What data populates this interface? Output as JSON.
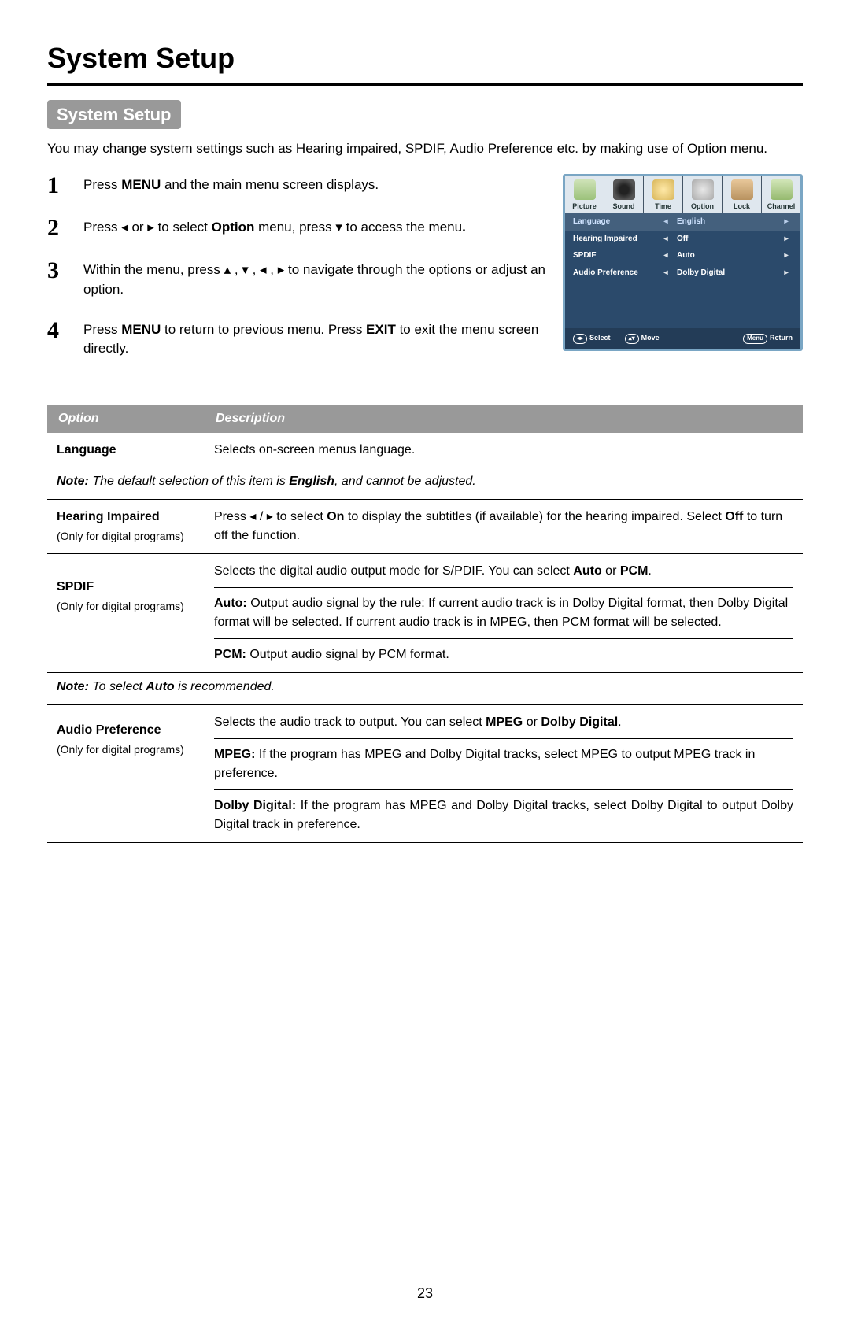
{
  "page": {
    "main_title": "System Setup",
    "section_badge": "System Setup",
    "intro": "You may change system settings such as Hearing impaired, SPDIF, Audio Preference etc. by making use of Option menu.",
    "page_number": "23"
  },
  "steps": [
    {
      "num": "1",
      "html": "Press <b>MENU</b> and the main menu screen displays."
    },
    {
      "num": "2",
      "html": "Press <span class='arrow'>◂</span> or <span class='arrow'>▸</span> to select <b>Option</b> menu,  press <span class='arrow'>▾</span> to access the menu<b>.</b>"
    },
    {
      "num": "3",
      "html": "Within the menu, press <span class='arrow'>▴</span> , <span class='arrow'>▾</span> , <span class='arrow'>◂</span> , <span class='arrow'>▸</span> to navigate through the options or adjust an option."
    },
    {
      "num": "4",
      "html": "Press <b>MENU</b> to return to previous menu. Press <b>EXIT</b> to exit the menu screen directly."
    }
  ],
  "osd": {
    "tabs": [
      "Picture",
      "Sound",
      "Time",
      "Option",
      "Lock",
      "Channel"
    ],
    "rows": [
      {
        "label": "Language",
        "value": "English",
        "highlight": true
      },
      {
        "label": "Hearing Impaired",
        "value": "Off",
        "highlight": false
      },
      {
        "label": "SPDIF",
        "value": "Auto",
        "highlight": false
      },
      {
        "label": "Audio Preference",
        "value": "Dolby Digital",
        "highlight": false
      }
    ],
    "footer": {
      "select_sym": "◂▸",
      "select": "Select",
      "move_sym": "▴▾",
      "move": "Move",
      "return_sym": "Menu",
      "return": "Return"
    }
  },
  "table": {
    "headers": {
      "option": "Option",
      "description": "Description"
    },
    "language": {
      "name": "Language",
      "desc": "Selects on-screen menus language.",
      "note_html": "<strong>Note:</strong> The default selection of this item is <strong>English</strong>, and cannot be adjusted."
    },
    "hearing": {
      "name": "Hearing Impaired",
      "sub": "(Only for digital programs)",
      "desc_html": "Press <span class='arrow'>◂</span> / <span class='arrow'>▸</span> to select <b>On</b> to display the subtitles (if available) for the hearing impaired. Select <b>Off</b> to turn off the function."
    },
    "spdif": {
      "name": "SPDIF",
      "sub": "(Only for digital programs)",
      "top_html": "Selects the digital audio output mode for S/PDIF. You can select <b>Auto</b> or <b>PCM</b>.",
      "auto_html": "<b>Auto:</b> Output audio signal by the rule: If current audio track is in Dolby Digital format, then Dolby Digital format will be selected. If current audio track is in MPEG, then PCM format will be selected.",
      "pcm_html": "<b>PCM:</b> Output audio signal by PCM format.",
      "note_html": "<strong>Note:</strong> To select <strong>Auto</strong> is recommended."
    },
    "audio": {
      "name": "Audio Preference",
      "sub": "(Only for digital programs)",
      "top_html": "Selects the audio track to output. You can select <b>MPEG</b> or <b>Dolby Digital</b>.",
      "mpeg_html": "<b>MPEG:</b> If the program has MPEG and Dolby Digital tracks, select MPEG to output MPEG track in preference.",
      "dolby_html": "<b>Dolby Digital:</b> If the program has MPEG and Dolby Digital tracks, select Dolby Digital to output Dolby Digital track in preference."
    }
  }
}
